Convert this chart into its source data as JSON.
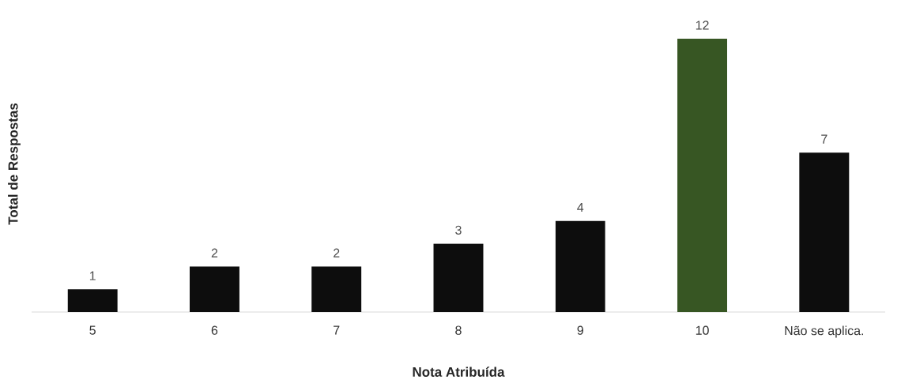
{
  "chart_data": {
    "type": "bar",
    "xlabel": "Nota Atribuída",
    "ylabel": "Total de Respostas",
    "categories": [
      "5",
      "6",
      "7",
      "8",
      "9",
      "10",
      "Não se aplica."
    ],
    "values": [
      1,
      2,
      2,
      3,
      4,
      12,
      7
    ],
    "colors": [
      "#0d0d0d",
      "#0d0d0d",
      "#0d0d0d",
      "#0d0d0d",
      "#0d0d0d",
      "#375623",
      "#0d0d0d"
    ],
    "data_labels": true
  }
}
